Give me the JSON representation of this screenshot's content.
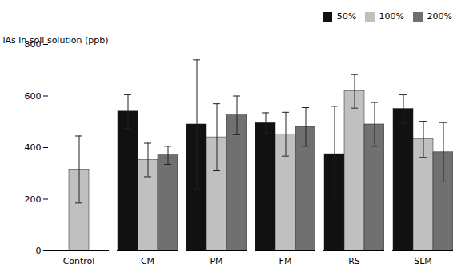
{
  "chart_data": {
    "type": "bar",
    "categories": [
      "Control",
      "CM",
      "PM",
      "FM",
      "RS",
      "SLM"
    ],
    "series": [
      {
        "name": "50%",
        "color": "#111111",
        "values": [
          null,
          540,
          490,
          495,
          375,
          550
        ],
        "errors": [
          null,
          65,
          250,
          40,
          185,
          55
        ]
      },
      {
        "name": "100%",
        "color": "#c0c0c0",
        "values": [
          315,
          352,
          440,
          452,
          618,
          432
        ],
        "errors": [
          130,
          65,
          130,
          85,
          65,
          70
        ]
      },
      {
        "name": "200%",
        "color": "#707070",
        "values": [
          null,
          370,
          525,
          480,
          490,
          382
        ],
        "errors": [
          null,
          35,
          75,
          75,
          85,
          115
        ]
      }
    ],
    "ylabel": "iAs in soil solution (ppb)",
    "ylim": [
      0,
      800
    ],
    "yticks": [
      0,
      200,
      400,
      600,
      800
    ],
    "legend": "upper right"
  }
}
